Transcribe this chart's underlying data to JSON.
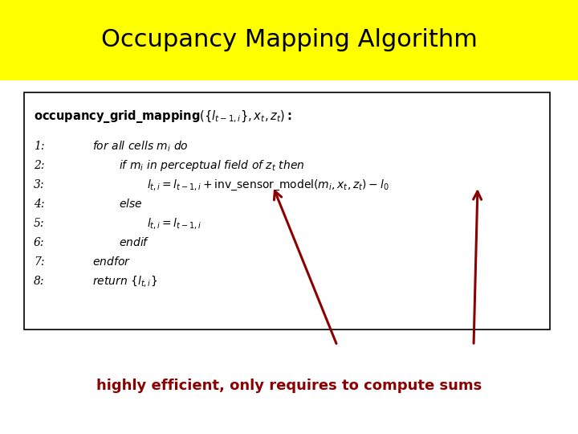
{
  "title": "Occupancy Mapping Algorithm",
  "title_bg": "#ffff00",
  "title_fontsize": 22,
  "title_color": "#000000",
  "bg_color": "#ffffff",
  "box_color": "#000000",
  "footer_text": "highly efficient, only requires to compute sums",
  "footer_color": "#8b0000",
  "arrow_color": "#8b0000",
  "fig_width": 7.2,
  "fig_height": 5.4,
  "dpi": 100
}
